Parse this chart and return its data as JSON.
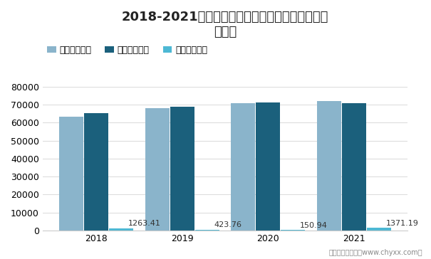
{
  "title": "2018-2021年三孚股份氢氧化钾生产量、销售量及\n库存量",
  "years": [
    "2018",
    "2019",
    "2020",
    "2021"
  ],
  "production": [
    63500,
    68200,
    71000,
    72200
  ],
  "sales": [
    65500,
    69000,
    71300,
    70800
  ],
  "inventory": [
    1263.41,
    423.76,
    150.94,
    1371.19
  ],
  "bar_color_production": "#8ab4cb",
  "bar_color_sales": "#1b607c",
  "bar_color_inventory": "#4db8d4",
  "legend_labels": [
    "生产量（吨）",
    "销售量（吨）",
    "库存量（吨）"
  ],
  "ylim": [
    0,
    80000
  ],
  "yticks": [
    0,
    10000,
    20000,
    30000,
    40000,
    50000,
    60000,
    70000,
    80000
  ],
  "bg_color": "#ffffff",
  "grid_color": "#dddddd",
  "footer": "制图：智研咨询（www.chyxx.com）",
  "title_fontsize": 13,
  "legend_fontsize": 9,
  "tick_fontsize": 9,
  "annotation_fontsize": 8
}
